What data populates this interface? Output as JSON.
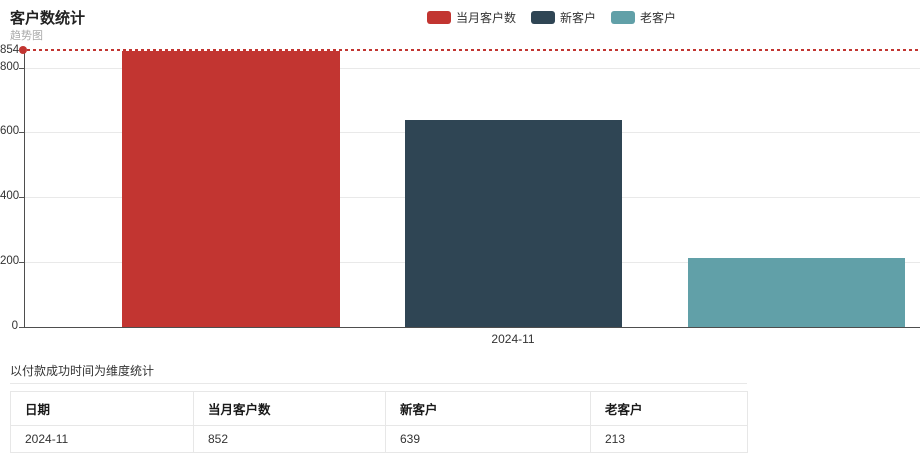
{
  "header": {
    "title": "客户数统计",
    "subtitle": "趋势图"
  },
  "legend": {
    "items": [
      {
        "label": "当月客户数",
        "color": "#c23531"
      },
      {
        "label": "新客户",
        "color": "#2f4554"
      },
      {
        "label": "老客户",
        "color": "#61a0a8"
      }
    ]
  },
  "chart_data": {
    "type": "bar",
    "title": "客户数统计",
    "subtitle": "趋势图",
    "categories": [
      "2024-11"
    ],
    "series": [
      {
        "name": "当月客户数",
        "color": "#c23531",
        "values": [
          852
        ]
      },
      {
        "name": "新客户",
        "color": "#2f4554",
        "values": [
          639
        ]
      },
      {
        "name": "老客户",
        "color": "#61a0a8",
        "values": [
          213
        ]
      }
    ],
    "markline": {
      "value": 854,
      "label": "854",
      "color": "#c23531",
      "style": "dashed"
    },
    "ylim": [
      0,
      854
    ],
    "yticks": [
      0,
      200,
      400,
      600,
      800
    ],
    "grid": true,
    "legend_position": "top-center",
    "xlabel": "",
    "ylabel": ""
  },
  "table_section": {
    "caption": "以付款成功时间为维度统计",
    "columns": [
      "日期",
      "当月客户数",
      "新客户",
      "老客户"
    ],
    "rows": [
      [
        "2024-11",
        "852",
        "639",
        "213"
      ]
    ]
  }
}
